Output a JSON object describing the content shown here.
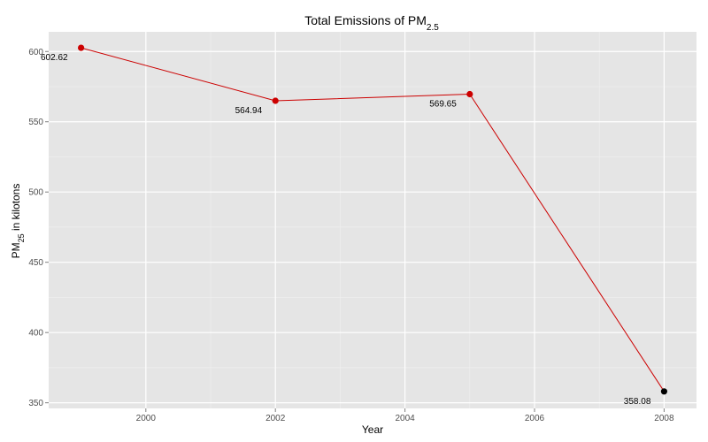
{
  "chart_data": {
    "type": "line",
    "title": {
      "main": "Total Emissions of PM",
      "sub": "2.5"
    },
    "xlabel": "Year",
    "ylabel": {
      "pre": "PM",
      "sub": "25",
      "post": " in kilotons"
    },
    "x": [
      1999,
      2002,
      2005,
      2008
    ],
    "values": [
      602.62,
      564.94,
      569.65,
      358.08
    ],
    "labels": [
      "602.62",
      "564.94",
      "569.65",
      "358.08"
    ],
    "point_colors": [
      "#cc0000",
      "#cc0000",
      "#cc0000",
      "#000000"
    ],
    "xticks": [
      2000,
      2002,
      2004,
      2006,
      2008
    ],
    "yticks": [
      350,
      400,
      450,
      500,
      550,
      600
    ],
    "xlim": [
      1998.5,
      2008.5
    ],
    "ylim": [
      346,
      614
    ],
    "grid": true,
    "legend": "none"
  },
  "colors": {
    "panel": "#e5e5e5",
    "grid_major": "#ffffff",
    "grid_minor": "#f0f0f0",
    "line": "#cc0000"
  }
}
